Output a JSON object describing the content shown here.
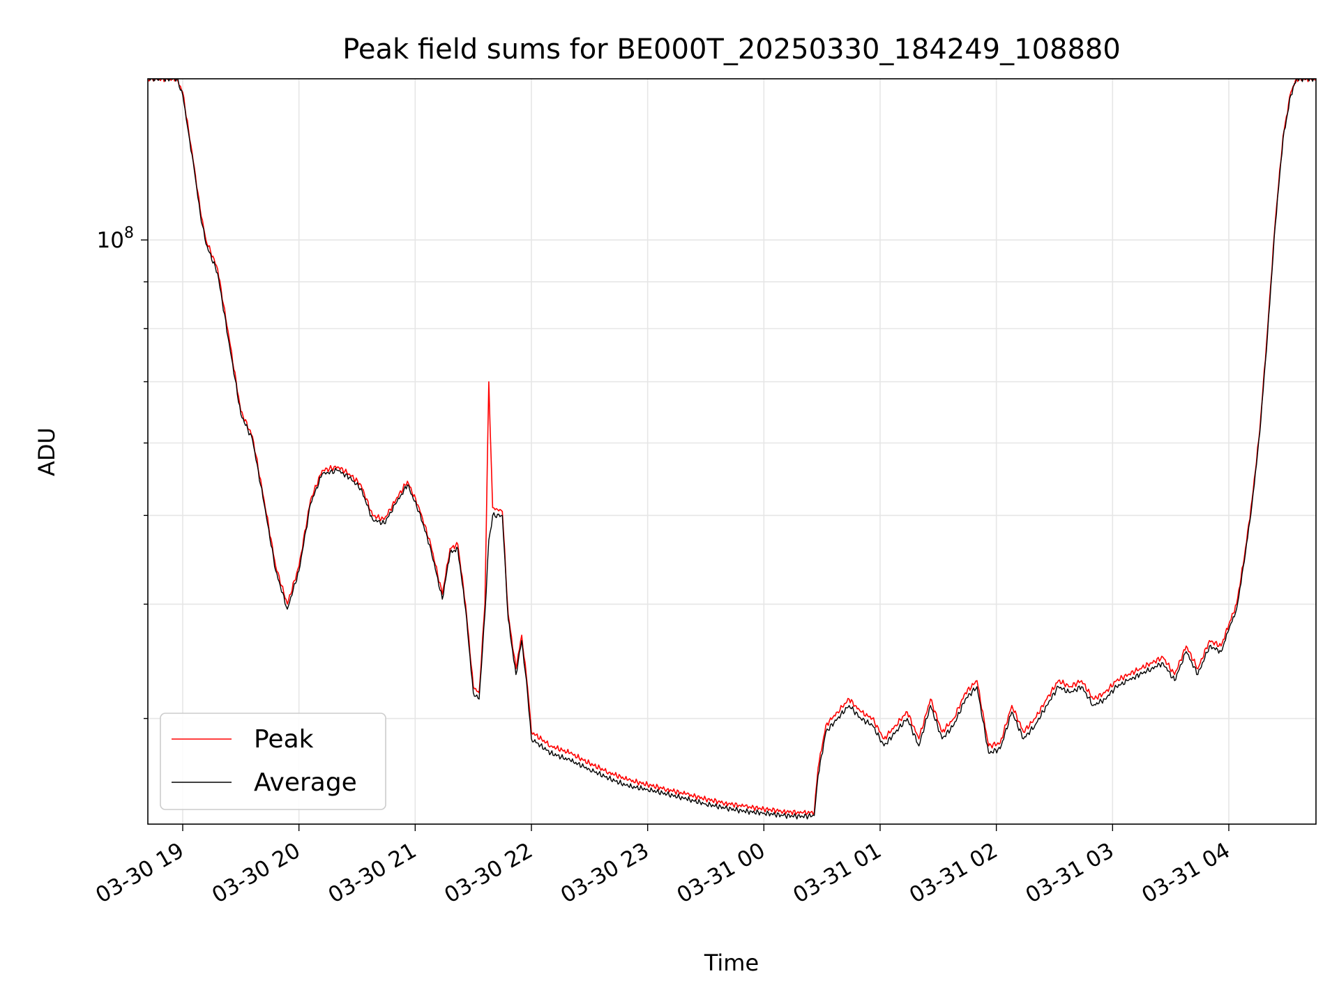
{
  "chart_data": {
    "type": "line",
    "title": "Peak field sums for BE000T_20250330_184249_108880",
    "xlabel": "Time",
    "ylabel": "ADU",
    "y_scale": "log",
    "xlim": [
      "2025-03-30 18:42",
      "2025-03-31 04:45"
    ],
    "ylim": [
      23000000,
      150000000
    ],
    "x_ticks": [
      "03-30 19",
      "03-30 20",
      "03-30 21",
      "03-30 22",
      "03-30 23",
      "03-31 00",
      "03-31 01",
      "03-31 02",
      "03-31 03",
      "03-31 04"
    ],
    "y_major_ticks": [
      {
        "value": 100000000,
        "base": "10",
        "exponent": "8"
      }
    ],
    "grid": true,
    "legend": "lower-left",
    "series": [
      {
        "name": "Peak",
        "color": "#ff0000",
        "x": [
          "2025-03-30 18:42",
          "2025-03-30 18:57",
          "2025-03-30 19:00",
          "2025-03-30 19:03",
          "2025-03-30 19:06",
          "2025-03-30 19:09",
          "2025-03-30 19:12",
          "2025-03-30 19:18",
          "2025-03-30 19:24",
          "2025-03-30 19:30",
          "2025-03-30 19:36",
          "2025-03-30 19:42",
          "2025-03-30 19:48",
          "2025-03-30 19:54",
          "2025-03-30 20:00",
          "2025-03-30 20:06",
          "2025-03-30 20:12",
          "2025-03-30 20:20",
          "2025-03-30 20:26",
          "2025-03-30 20:32",
          "2025-03-30 20:38",
          "2025-03-30 20:44",
          "2025-03-30 20:50",
          "2025-03-30 20:56",
          "2025-03-30 21:02",
          "2025-03-30 21:08",
          "2025-03-30 21:14",
          "2025-03-30 21:18",
          "2025-03-30 21:22",
          "2025-03-30 21:26",
          "2025-03-30 21:30",
          "2025-03-30 21:33",
          "2025-03-30 21:36",
          "2025-03-30 21:38",
          "2025-03-30 21:40",
          "2025-03-30 21:45",
          "2025-03-30 21:48",
          "2025-03-30 21:52",
          "2025-03-30 21:55",
          "2025-03-30 21:58",
          "2025-03-30 22:00",
          "2025-03-30 22:10",
          "2025-03-30 22:20",
          "2025-03-30 22:30",
          "2025-03-30 22:40",
          "2025-03-30 22:50",
          "2025-03-30 23:00",
          "2025-03-30 23:10",
          "2025-03-30 23:20",
          "2025-03-30 23:30",
          "2025-03-30 23:40",
          "2025-03-30 23:50",
          "2025-03-31 00:00",
          "2025-03-31 00:10",
          "2025-03-31 00:20",
          "2025-03-31 00:26",
          "2025-03-31 00:28",
          "2025-03-31 00:32",
          "2025-03-31 00:38",
          "2025-03-31 00:44",
          "2025-03-31 00:50",
          "2025-03-31 00:56",
          "2025-03-31 01:02",
          "2025-03-31 01:08",
          "2025-03-31 01:14",
          "2025-03-31 01:20",
          "2025-03-31 01:26",
          "2025-03-31 01:32",
          "2025-03-31 01:38",
          "2025-03-31 01:44",
          "2025-03-31 01:50",
          "2025-03-31 01:56",
          "2025-03-31 02:02",
          "2025-03-31 02:08",
          "2025-03-31 02:14",
          "2025-03-31 02:20",
          "2025-03-31 02:26",
          "2025-03-31 02:32",
          "2025-03-31 02:38",
          "2025-03-31 02:44",
          "2025-03-31 02:50",
          "2025-03-31 02:56",
          "2025-03-31 03:02",
          "2025-03-31 03:08",
          "2025-03-31 03:14",
          "2025-03-31 03:20",
          "2025-03-31 03:26",
          "2025-03-31 03:32",
          "2025-03-31 03:38",
          "2025-03-31 03:44",
          "2025-03-31 03:50",
          "2025-03-31 03:56",
          "2025-03-31 04:00",
          "2025-03-31 04:04",
          "2025-03-31 04:08",
          "2025-03-31 04:12",
          "2025-03-31 04:16",
          "2025-03-31 04:20",
          "2025-03-31 04:24",
          "2025-03-31 04:28",
          "2025-03-31 04:32",
          "2025-03-31 04:35",
          "2025-03-31 04:45"
        ],
        "values": [
          150000000,
          150000000,
          145000000,
          132000000,
          120000000,
          108000000,
          100000000,
          93000000,
          78000000,
          65000000,
          61000000,
          52000000,
          44000000,
          40000000,
          44000000,
          52000000,
          56000000,
          56500000,
          55500000,
          54000000,
          50000000,
          49500000,
          52000000,
          54500000,
          51000000,
          46500000,
          41000000,
          46000000,
          46500000,
          40000000,
          32500000,
          32000000,
          40000000,
          70000000,
          51000000,
          50500000,
          39000000,
          34000000,
          37000000,
          32500000,
          29000000,
          28000000,
          27500000,
          26800000,
          26200000,
          25700000,
          25400000,
          25100000,
          24800000,
          24500000,
          24250000,
          24050000,
          23900000,
          23750000,
          23650000,
          23700000,
          26500000,
          29500000,
          30500000,
          31500000,
          30500000,
          30000000,
          28500000,
          29500000,
          30500000,
          28500000,
          31500000,
          29000000,
          30000000,
          32000000,
          33000000,
          28000000,
          28200000,
          31000000,
          29000000,
          30000000,
          31500000,
          33000000,
          32500000,
          33000000,
          31500000,
          32000000,
          33000000,
          33500000,
          34000000,
          34500000,
          35000000,
          33500000,
          36000000,
          34000000,
          36500000,
          36000000,
          38000000,
          40000000,
          45000000,
          52000000,
          62000000,
          80000000,
          105000000,
          130000000,
          145000000,
          150000000,
          150000000
        ]
      },
      {
        "name": "Average",
        "color": "#000000",
        "x": [
          "2025-03-30 18:42",
          "2025-03-30 18:57",
          "2025-03-30 19:00",
          "2025-03-30 19:03",
          "2025-03-30 19:06",
          "2025-03-30 19:09",
          "2025-03-30 19:12",
          "2025-03-30 19:18",
          "2025-03-30 19:24",
          "2025-03-30 19:30",
          "2025-03-30 19:36",
          "2025-03-30 19:42",
          "2025-03-30 19:48",
          "2025-03-30 19:54",
          "2025-03-30 20:00",
          "2025-03-30 20:06",
          "2025-03-30 20:12",
          "2025-03-30 20:20",
          "2025-03-30 20:26",
          "2025-03-30 20:32",
          "2025-03-30 20:38",
          "2025-03-30 20:44",
          "2025-03-30 20:50",
          "2025-03-30 20:56",
          "2025-03-30 21:02",
          "2025-03-30 21:08",
          "2025-03-30 21:14",
          "2025-03-30 21:18",
          "2025-03-30 21:22",
          "2025-03-30 21:26",
          "2025-03-30 21:30",
          "2025-03-30 21:33",
          "2025-03-30 21:36",
          "2025-03-30 21:38",
          "2025-03-30 21:40",
          "2025-03-30 21:45",
          "2025-03-30 21:48",
          "2025-03-30 21:52",
          "2025-03-30 21:55",
          "2025-03-30 21:58",
          "2025-03-30 22:00",
          "2025-03-30 22:10",
          "2025-03-30 22:20",
          "2025-03-30 22:30",
          "2025-03-30 22:40",
          "2025-03-30 22:50",
          "2025-03-30 23:00",
          "2025-03-30 23:10",
          "2025-03-30 23:20",
          "2025-03-30 23:30",
          "2025-03-30 23:40",
          "2025-03-30 23:50",
          "2025-03-31 00:00",
          "2025-03-31 00:10",
          "2025-03-31 00:20",
          "2025-03-31 00:26",
          "2025-03-31 00:28",
          "2025-03-31 00:32",
          "2025-03-31 00:38",
          "2025-03-31 00:44",
          "2025-03-31 00:50",
          "2025-03-31 00:56",
          "2025-03-31 01:02",
          "2025-03-31 01:08",
          "2025-03-31 01:14",
          "2025-03-31 01:20",
          "2025-03-31 01:26",
          "2025-03-31 01:32",
          "2025-03-31 01:38",
          "2025-03-31 01:44",
          "2025-03-31 01:50",
          "2025-03-31 01:56",
          "2025-03-31 02:02",
          "2025-03-31 02:08",
          "2025-03-31 02:14",
          "2025-03-31 02:20",
          "2025-03-31 02:26",
          "2025-03-31 02:32",
          "2025-03-31 02:38",
          "2025-03-31 02:44",
          "2025-03-31 02:50",
          "2025-03-31 02:56",
          "2025-03-31 03:02",
          "2025-03-31 03:08",
          "2025-03-31 03:14",
          "2025-03-31 03:20",
          "2025-03-31 03:26",
          "2025-03-31 03:32",
          "2025-03-31 03:38",
          "2025-03-31 03:44",
          "2025-03-31 03:50",
          "2025-03-31 03:56",
          "2025-03-31 04:00",
          "2025-03-31 04:04",
          "2025-03-31 04:08",
          "2025-03-31 04:12",
          "2025-03-31 04:16",
          "2025-03-31 04:20",
          "2025-03-31 04:24",
          "2025-03-31 04:28",
          "2025-03-31 04:32",
          "2025-03-31 04:35",
          "2025-03-31 04:45"
        ],
        "values": [
          150000000,
          150000000,
          144000000,
          131000000,
          119000000,
          107000000,
          99000000,
          92000000,
          77000000,
          64500000,
          60500000,
          51500000,
          43500000,
          39500000,
          43500000,
          51500000,
          55500000,
          56000000,
          55000000,
          53500000,
          49500000,
          49000000,
          51500000,
          54000000,
          50500000,
          46000000,
          40500000,
          45500000,
          46000000,
          39500000,
          32000000,
          31500000,
          39000000,
          47000000,
          50000000,
          50000000,
          38500000,
          33500000,
          36500000,
          32000000,
          28500000,
          27500000,
          27000000,
          26400000,
          25800000,
          25300000,
          25100000,
          24800000,
          24500000,
          24200000,
          23950000,
          23750000,
          23650000,
          23500000,
          23450000,
          23500000,
          26000000,
          29000000,
          30000000,
          31000000,
          30000000,
          29500000,
          28000000,
          29000000,
          30000000,
          28000000,
          31000000,
          28500000,
          29500000,
          31500000,
          32500000,
          27500000,
          27800000,
          30500000,
          28500000,
          29500000,
          31000000,
          32500000,
          32000000,
          32500000,
          31000000,
          31500000,
          32500000,
          33000000,
          33500000,
          34000000,
          34500000,
          33000000,
          35500000,
          33500000,
          36000000,
          35500000,
          37500000,
          39500000,
          44500000,
          51500000,
          61500000,
          79000000,
          104000000,
          129000000,
          144000000,
          150000000,
          150000000
        ]
      }
    ]
  }
}
